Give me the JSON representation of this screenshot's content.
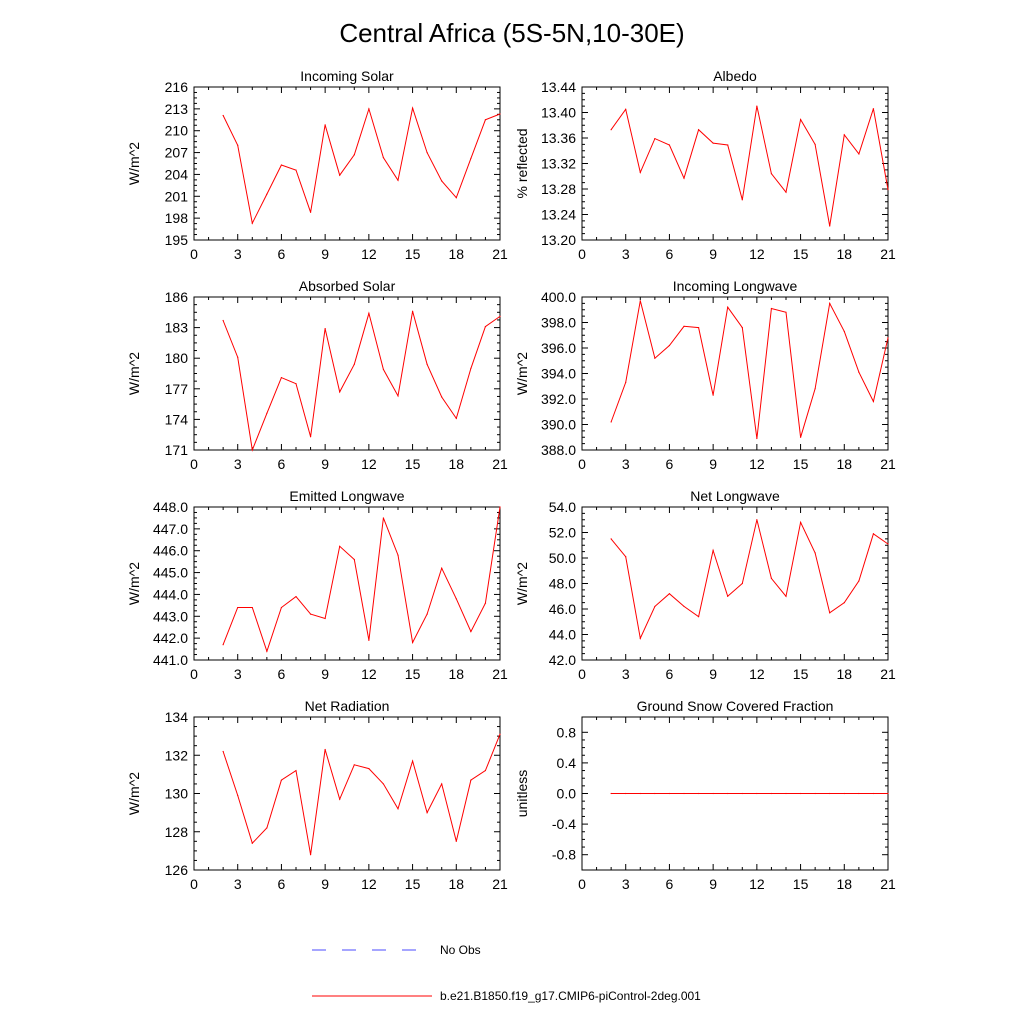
{
  "title": "Central Africa (5S-5N,10-30E)",
  "colors": {
    "series": "#ff0000",
    "obs": "#4b4bff",
    "axis": "#000000"
  },
  "legend": {
    "entries": [
      {
        "label": "No Obs",
        "style": "dashed",
        "color": "#4b4bff"
      },
      {
        "label": "b.e21.B1850.f19_g17.CMIP6-piControl-2deg.001",
        "style": "solid",
        "color": "#ff0000"
      }
    ]
  },
  "chart_data": [
    {
      "type": "line",
      "title": "Incoming Solar",
      "xlabel": "",
      "ylabel": "W/m^2",
      "xlim": [
        0,
        21
      ],
      "ylim": [
        195,
        216
      ],
      "xticks": [
        "0",
        "3",
        "6",
        "9",
        "12",
        "15",
        "18",
        "21"
      ],
      "yticks": [
        "195",
        "198",
        "201",
        "204",
        "207",
        "210",
        "213",
        "216"
      ],
      "series": [
        {
          "x": [
            2,
            3,
            4,
            5,
            6,
            7,
            8,
            9,
            10,
            11,
            12,
            13,
            14,
            15,
            16,
            17,
            18,
            19,
            20,
            21
          ],
          "values": [
            212.1,
            208.0,
            197.3,
            201.3,
            205.3,
            204.6,
            198.8,
            210.8,
            203.9,
            206.7,
            213.0,
            206.3,
            203.2,
            213.1,
            207.0,
            203.1,
            200.8,
            206.2,
            211.5,
            212.3
          ]
        }
      ]
    },
    {
      "type": "line",
      "title": "Albedo",
      "xlabel": "",
      "ylabel": "% reflected",
      "xlim": [
        0,
        21
      ],
      "ylim": [
        13.2,
        13.44
      ],
      "xticks": [
        "0",
        "3",
        "6",
        "9",
        "12",
        "15",
        "18",
        "21"
      ],
      "yticks": [
        "13.20",
        "13.24",
        "13.28",
        "13.32",
        "13.36",
        "13.40",
        "13.44"
      ],
      "series": [
        {
          "x": [
            2,
            3,
            4,
            5,
            6,
            7,
            8,
            9,
            10,
            11,
            12,
            13,
            14,
            15,
            16,
            17,
            18,
            19,
            20,
            21
          ],
          "values": [
            13.373,
            13.405,
            13.306,
            13.359,
            13.349,
            13.297,
            13.373,
            13.352,
            13.349,
            13.263,
            13.41,
            13.304,
            13.275,
            13.389,
            13.35,
            13.222,
            13.365,
            13.335,
            13.406,
            13.279
          ]
        }
      ]
    },
    {
      "type": "line",
      "title": "Absorbed Solar",
      "xlabel": "",
      "ylabel": "W/m^2",
      "xlim": [
        0,
        21
      ],
      "ylim": [
        171,
        186
      ],
      "xticks": [
        "0",
        "3",
        "6",
        "9",
        "12",
        "15",
        "18",
        "21"
      ],
      "yticks": [
        "171",
        "174",
        "177",
        "180",
        "183",
        "186"
      ],
      "series": [
        {
          "x": [
            2,
            3,
            4,
            5,
            6,
            7,
            8,
            9,
            10,
            11,
            12,
            13,
            14,
            15,
            16,
            17,
            18,
            19,
            20,
            21
          ],
          "values": [
            183.7,
            180.1,
            171.0,
            174.6,
            178.1,
            177.5,
            172.3,
            182.9,
            176.7,
            179.4,
            184.4,
            178.9,
            176.3,
            184.6,
            179.4,
            176.2,
            174.1,
            179.0,
            183.1,
            184.1
          ]
        }
      ]
    },
    {
      "type": "line",
      "title": "Incoming Longwave",
      "xlabel": "",
      "ylabel": "W/m^2",
      "xlim": [
        0,
        21
      ],
      "ylim": [
        388.0,
        400.0
      ],
      "xticks": [
        "0",
        "3",
        "6",
        "9",
        "12",
        "15",
        "18",
        "21"
      ],
      "yticks": [
        "388.0",
        "390.0",
        "392.0",
        "394.0",
        "396.0",
        "398.0",
        "400.0"
      ],
      "series": [
        {
          "x": [
            2,
            3,
            4,
            5,
            6,
            7,
            8,
            9,
            10,
            11,
            12,
            13,
            14,
            15,
            16,
            17,
            18,
            19,
            20,
            21
          ],
          "values": [
            390.2,
            393.3,
            399.7,
            395.2,
            396.2,
            397.7,
            397.6,
            392.3,
            399.2,
            397.6,
            388.9,
            399.1,
            398.8,
            389.0,
            392.8,
            399.5,
            397.3,
            394.1,
            391.8,
            396.8
          ]
        }
      ]
    },
    {
      "type": "line",
      "title": "Emitted Longwave",
      "xlabel": "",
      "ylabel": "W/m^2",
      "xlim": [
        0,
        21
      ],
      "ylim": [
        441.0,
        448.0
      ],
      "xticks": [
        "0",
        "3",
        "6",
        "9",
        "12",
        "15",
        "18",
        "21"
      ],
      "yticks": [
        "441.0",
        "442.0",
        "443.0",
        "444.0",
        "445.0",
        "446.0",
        "447.0",
        "448.0"
      ],
      "series": [
        {
          "x": [
            2,
            3,
            4,
            5,
            6,
            7,
            8,
            9,
            10,
            11,
            12,
            13,
            14,
            15,
            16,
            17,
            18,
            19,
            20,
            21
          ],
          "values": [
            441.7,
            443.4,
            443.4,
            441.4,
            443.4,
            443.9,
            443.1,
            442.9,
            446.2,
            445.6,
            441.9,
            447.5,
            445.8,
            441.8,
            443.1,
            445.2,
            443.8,
            442.3,
            443.6,
            448.0
          ]
        }
      ]
    },
    {
      "type": "line",
      "title": "Net Longwave",
      "xlabel": "",
      "ylabel": "W/m^2",
      "xlim": [
        0,
        21
      ],
      "ylim": [
        42.0,
        54.0
      ],
      "xticks": [
        "0",
        "3",
        "6",
        "9",
        "12",
        "15",
        "18",
        "21"
      ],
      "yticks": [
        "42.0",
        "44.0",
        "46.0",
        "48.0",
        "50.0",
        "52.0",
        "54.0"
      ],
      "series": [
        {
          "x": [
            2,
            3,
            4,
            5,
            6,
            7,
            8,
            9,
            10,
            11,
            12,
            13,
            14,
            15,
            16,
            17,
            18,
            19,
            20,
            21
          ],
          "values": [
            51.5,
            50.1,
            43.7,
            46.2,
            47.2,
            46.2,
            45.4,
            50.6,
            47.0,
            48.0,
            53.0,
            48.4,
            47.0,
            52.8,
            50.4,
            45.7,
            46.5,
            48.2,
            51.9,
            51.1
          ]
        }
      ]
    },
    {
      "type": "line",
      "title": "Net Radiation",
      "xlabel": "",
      "ylabel": "W/m^2",
      "xlim": [
        0,
        21
      ],
      "ylim": [
        126,
        134
      ],
      "xticks": [
        "0",
        "3",
        "6",
        "9",
        "12",
        "15",
        "18",
        "21"
      ],
      "yticks": [
        "126",
        "128",
        "130",
        "132",
        "134"
      ],
      "series": [
        {
          "x": [
            2,
            3,
            4,
            5,
            6,
            7,
            8,
            9,
            10,
            11,
            12,
            13,
            14,
            15,
            16,
            17,
            18,
            19,
            20,
            21
          ],
          "values": [
            132.2,
            129.9,
            127.4,
            128.2,
            130.7,
            131.2,
            126.8,
            132.3,
            129.7,
            131.5,
            131.3,
            130.5,
            129.2,
            131.7,
            129.0,
            130.5,
            127.5,
            130.7,
            131.2,
            133.1
          ]
        }
      ]
    },
    {
      "type": "line",
      "title": "Ground Snow Covered Fraction",
      "xlabel": "",
      "ylabel": "unitless",
      "xlim": [
        0,
        21
      ],
      "ylim": [
        -1.0,
        1.0
      ],
      "xticks": [
        "0",
        "3",
        "6",
        "9",
        "12",
        "15",
        "18",
        "21"
      ],
      "yticks": [
        "-0.8",
        "-0.4",
        "0.0",
        "0.4",
        "0.8"
      ],
      "series": [
        {
          "x": [
            2,
            3,
            4,
            5,
            6,
            7,
            8,
            9,
            10,
            11,
            12,
            13,
            14,
            15,
            16,
            17,
            18,
            19,
            20,
            21
          ],
          "values": [
            0,
            0,
            0,
            0,
            0,
            0,
            0,
            0,
            0,
            0,
            0,
            0,
            0,
            0,
            0,
            0,
            0,
            0,
            0,
            0
          ]
        }
      ]
    }
  ]
}
